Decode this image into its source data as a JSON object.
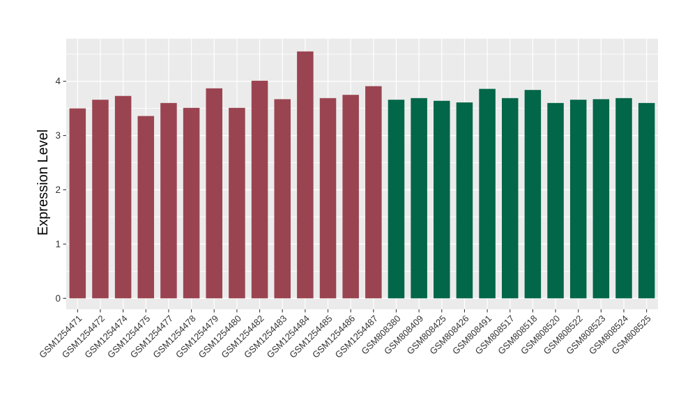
{
  "chart_data": {
    "type": "bar",
    "title": "",
    "xlabel": "",
    "ylabel": "Expression Level",
    "ylim": [
      0,
      4.79
    ],
    "yticks": [
      0,
      1,
      2,
      3,
      4
    ],
    "yminorticks": [
      0.5,
      1.5,
      2.5,
      3.5,
      4.5
    ],
    "grid": "on",
    "legend": "none",
    "bars": [
      {
        "label": "GSM1254471",
        "value": 3.5,
        "group": "maroon"
      },
      {
        "label": "GSM1254472",
        "value": 3.66,
        "group": "maroon"
      },
      {
        "label": "GSM1254474",
        "value": 3.73,
        "group": "maroon"
      },
      {
        "label": "GSM1254475",
        "value": 3.36,
        "group": "maroon"
      },
      {
        "label": "GSM1254477",
        "value": 3.6,
        "group": "maroon"
      },
      {
        "label": "GSM1254478",
        "value": 3.51,
        "group": "maroon"
      },
      {
        "label": "GSM1254479",
        "value": 3.87,
        "group": "maroon"
      },
      {
        "label": "GSM1254480",
        "value": 3.51,
        "group": "maroon"
      },
      {
        "label": "GSM1254482",
        "value": 4.01,
        "group": "maroon"
      },
      {
        "label": "GSM1254483",
        "value": 3.67,
        "group": "maroon"
      },
      {
        "label": "GSM1254484",
        "value": 4.55,
        "group": "maroon"
      },
      {
        "label": "GSM1254485",
        "value": 3.69,
        "group": "maroon"
      },
      {
        "label": "GSM1254486",
        "value": 3.75,
        "group": "maroon"
      },
      {
        "label": "GSM1254487",
        "value": 3.91,
        "group": "maroon"
      },
      {
        "label": "GSM808380",
        "value": 3.66,
        "group": "green"
      },
      {
        "label": "GSM808409",
        "value": 3.69,
        "group": "green"
      },
      {
        "label": "GSM808425",
        "value": 3.64,
        "group": "green"
      },
      {
        "label": "GSM808426",
        "value": 3.61,
        "group": "green"
      },
      {
        "label": "GSM808491",
        "value": 3.86,
        "group": "green"
      },
      {
        "label": "GSM808517",
        "value": 3.69,
        "group": "green"
      },
      {
        "label": "GSM808518",
        "value": 3.84,
        "group": "green"
      },
      {
        "label": "GSM808520",
        "value": 3.6,
        "group": "green"
      },
      {
        "label": "GSM808522",
        "value": 3.66,
        "group": "green"
      },
      {
        "label": "GSM808523",
        "value": 3.67,
        "group": "green"
      },
      {
        "label": "GSM808524",
        "value": 3.69,
        "group": "green"
      },
      {
        "label": "GSM808525",
        "value": 3.6,
        "group": "green"
      }
    ],
    "group_colors": {
      "maroon": "#9B4451",
      "green": "#026649"
    },
    "style": {
      "panel_bg": "#EBEBEB",
      "grid_color": "#FFFFFF",
      "tick_mark_color": "#333333",
      "tick_label_color": "#333333",
      "axis_title_color": "#000000"
    }
  }
}
